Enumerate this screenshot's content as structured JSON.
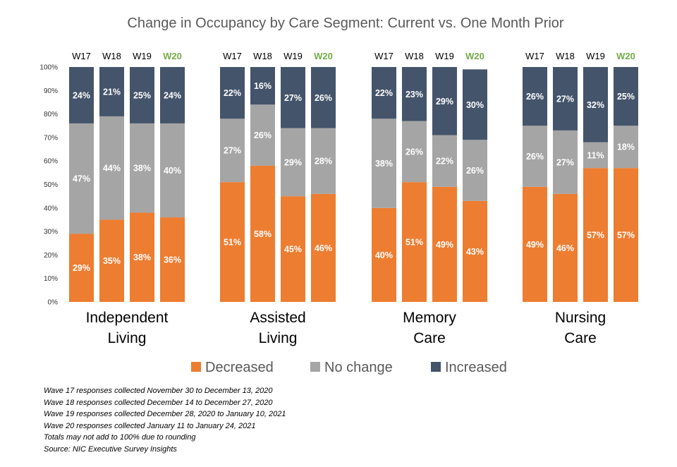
{
  "chart_data": {
    "type": "bar",
    "stacked": true,
    "title": "Change in Occupancy by Care Segment: Current vs. One Month Prior",
    "y_ticks": [
      "0%",
      "10%",
      "20%",
      "30%",
      "40%",
      "50%",
      "60%",
      "70%",
      "80%",
      "90%",
      "100%"
    ],
    "ylim": [
      0,
      100
    ],
    "highlight_wave": "W20",
    "highlight_color": "#70AD47",
    "legend_position": "bottom",
    "series": [
      {
        "key": "decreased",
        "name": "Decreased",
        "color": "#ED7D31"
      },
      {
        "key": "no_change",
        "name": "No change",
        "color": "#A5A5A5"
      },
      {
        "key": "increased",
        "name": "Increased",
        "color": "#44546A"
      }
    ],
    "groups": [
      {
        "label_lines": [
          "Independent",
          "Living"
        ],
        "bars": [
          {
            "wave": "W17",
            "decreased": 29,
            "no_change": 47,
            "increased": 24
          },
          {
            "wave": "W18",
            "decreased": 35,
            "no_change": 44,
            "increased": 21
          },
          {
            "wave": "W19",
            "decreased": 38,
            "no_change": 38,
            "increased": 25
          },
          {
            "wave": "W20",
            "decreased": 36,
            "no_change": 40,
            "increased": 24
          }
        ]
      },
      {
        "label_lines": [
          "Assisted",
          "Living"
        ],
        "bars": [
          {
            "wave": "W17",
            "decreased": 51,
            "no_change": 27,
            "increased": 22
          },
          {
            "wave": "W18",
            "decreased": 58,
            "no_change": 26,
            "increased": 16
          },
          {
            "wave": "W19",
            "decreased": 45,
            "no_change": 29,
            "increased": 27
          },
          {
            "wave": "W20",
            "decreased": 46,
            "no_change": 28,
            "increased": 26
          }
        ]
      },
      {
        "label_lines": [
          "Memory",
          "Care"
        ],
        "bars": [
          {
            "wave": "W17",
            "decreased": 40,
            "no_change": 38,
            "increased": 22
          },
          {
            "wave": "W18",
            "decreased": 51,
            "no_change": 26,
            "increased": 23
          },
          {
            "wave": "W19",
            "decreased": 49,
            "no_change": 22,
            "increased": 29
          },
          {
            "wave": "W20",
            "decreased": 43,
            "no_change": 26,
            "increased": 30
          }
        ]
      },
      {
        "label_lines": [
          "Nursing",
          "Care"
        ],
        "bars": [
          {
            "wave": "W17",
            "decreased": 49,
            "no_change": 26,
            "increased": 26
          },
          {
            "wave": "W18",
            "decreased": 46,
            "no_change": 27,
            "increased": 27
          },
          {
            "wave": "W19",
            "decreased": 57,
            "no_change": 11,
            "increased": 32
          },
          {
            "wave": "W20",
            "decreased": 57,
            "no_change": 18,
            "increased": 25
          }
        ]
      }
    ]
  },
  "notes": [
    "Wave 17 responses collected  November 30 to December 13, 2020",
    "Wave 18 responses collected  December 14 to December  27, 2020",
    "Wave 19 responses collected  December 28, 2020 to January 10, 2021",
    "Wave 20 responses collected  January 11 to January 24, 2021",
    "Totals may not add to 100% due to rounding",
    "Source: NIC Executive Survey Insights"
  ]
}
